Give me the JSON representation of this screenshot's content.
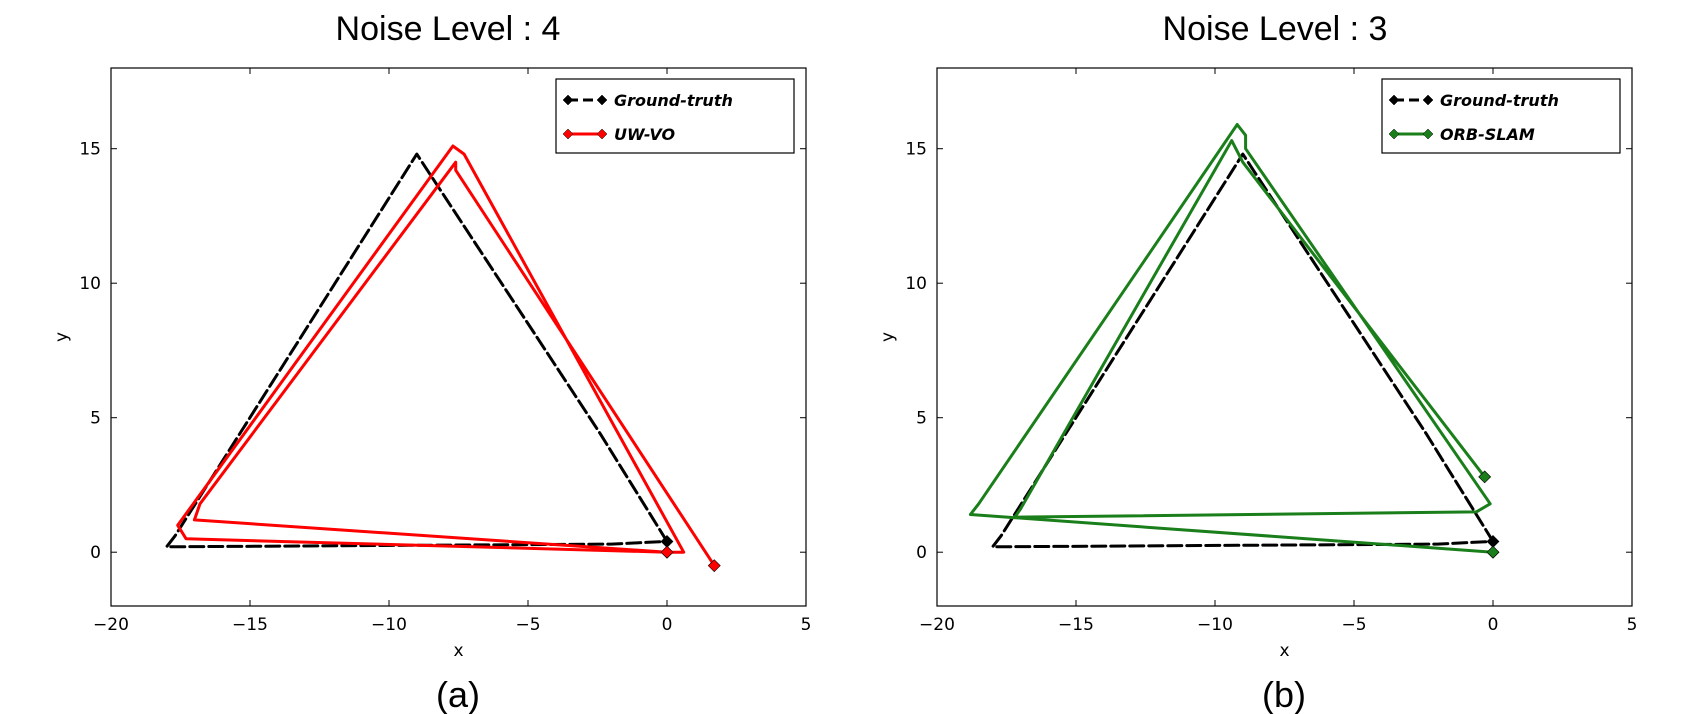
{
  "chart_data": [
    {
      "type": "line",
      "title": "Noise Level : 4",
      "caption": "(a)",
      "xlabel": "x",
      "ylabel": "y",
      "xlim": [
        -20,
        5
      ],
      "ylim": [
        -2,
        18
      ],
      "xticks": [
        -20,
        -15,
        -10,
        -5,
        0,
        5
      ],
      "yticks": [
        0,
        5,
        10,
        15
      ],
      "xtick_labels": [
        "−20",
        "−15",
        "−10",
        "−5",
        "0",
        "5"
      ],
      "ytick_labels": [
        "0",
        "5",
        "10",
        "15"
      ],
      "legend": "top-right",
      "grid": false,
      "series": [
        {
          "name": "Ground-truth",
          "color": "#000000",
          "style": "dashed",
          "points": [
            [
              0,
              0.4
            ],
            [
              -2.4,
              4.4
            ],
            [
              -9,
              14.8
            ],
            [
              -17.7,
              0.6
            ],
            [
              -18,
              0.2
            ],
            [
              -2,
              0.3
            ],
            [
              0,
              0.4
            ]
          ],
          "markers": [
            [
              0,
              0.4
            ],
            [
              0,
              0
            ]
          ]
        },
        {
          "name": "UW-VO",
          "color": "#ff0000",
          "style": "solid",
          "points": [
            [
              0,
              0
            ],
            [
              -17.3,
              0.5
            ],
            [
              -17.6,
              1.0
            ],
            [
              -7.7,
              15.1
            ],
            [
              -7.3,
              14.8
            ],
            [
              0.6,
              0
            ],
            [
              0,
              0
            ],
            [
              -17,
              1.2
            ],
            [
              -16.8,
              1.8
            ],
            [
              -7.6,
              14.5
            ],
            [
              -7.6,
              14.2
            ],
            [
              1.7,
              -0.5
            ]
          ],
          "markers": [
            [
              0,
              0
            ],
            [
              1.7,
              -0.5
            ]
          ]
        }
      ]
    },
    {
      "type": "line",
      "title": "Noise Level : 3",
      "caption": "(b)",
      "xlabel": "x",
      "ylabel": "y",
      "xlim": [
        -20,
        5
      ],
      "ylim": [
        -2,
        18
      ],
      "xticks": [
        -20,
        -15,
        -10,
        -5,
        0,
        5
      ],
      "yticks": [
        0,
        5,
        10,
        15
      ],
      "xtick_labels": [
        "−20",
        "−15",
        "−10",
        "−5",
        "0",
        "5"
      ],
      "ytick_labels": [
        "0",
        "5",
        "10",
        "15"
      ],
      "legend": "top-right",
      "grid": false,
      "series": [
        {
          "name": "Ground-truth",
          "color": "#000000",
          "style": "dashed",
          "points": [
            [
              0,
              0.4
            ],
            [
              -2.4,
              4.4
            ],
            [
              -9,
              14.8
            ],
            [
              -17.7,
              0.6
            ],
            [
              -18,
              0.2
            ],
            [
              -2,
              0.3
            ],
            [
              0,
              0.4
            ]
          ],
          "markers": [
            [
              0,
              0.4
            ],
            [
              0,
              0
            ]
          ]
        },
        {
          "name": "ORB-SLAM",
          "color": "#1a7f1a",
          "style": "solid",
          "points": [
            [
              0,
              0
            ],
            [
              -18.8,
              1.4
            ],
            [
              -18.5,
              1.8
            ],
            [
              -9.2,
              15.9
            ],
            [
              -8.9,
              15.5
            ],
            [
              -8.9,
              15
            ],
            [
              -0.1,
              1.8
            ],
            [
              -0.6,
              1.5
            ],
            [
              -17.2,
              1.3
            ],
            [
              -17,
              1.6
            ],
            [
              -9.4,
              15.3
            ],
            [
              -9,
              14.5
            ],
            [
              -0.3,
              2.8
            ]
          ],
          "markers": [
            [
              0,
              0
            ],
            [
              -0.3,
              2.8
            ]
          ]
        }
      ]
    }
  ]
}
